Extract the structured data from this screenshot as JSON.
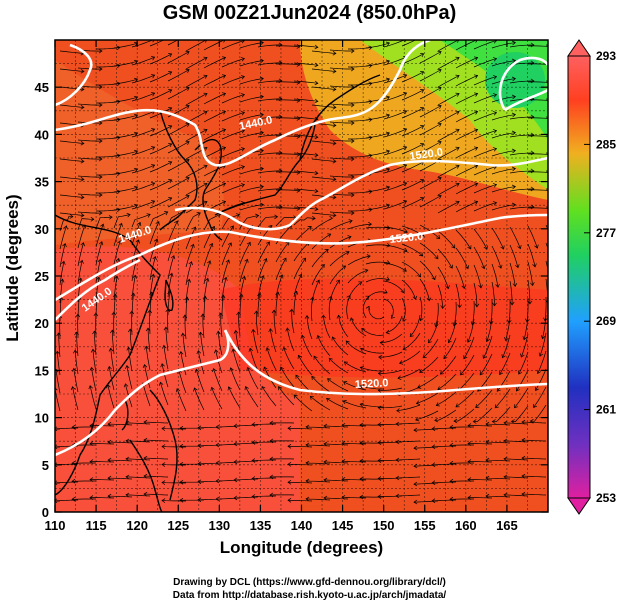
{
  "title": "GSM 00Z21Jun2024 (850.0hPa)",
  "x_axis": {
    "label": "Longitude (degrees)",
    "range": [
      110,
      170
    ],
    "ticks": [
      110,
      115,
      120,
      125,
      130,
      135,
      140,
      145,
      150,
      155,
      160,
      165
    ]
  },
  "y_axis": {
    "label": "Latitude  (degrees)",
    "range": [
      0,
      50
    ],
    "ticks": [
      0,
      5,
      10,
      15,
      20,
      25,
      30,
      35,
      40,
      45
    ]
  },
  "colorbar": {
    "ticks": [
      293,
      285,
      277,
      269,
      261,
      253
    ],
    "range": [
      253,
      293
    ],
    "colors": [
      "#e020a0",
      "#2030c0",
      "#20a0ff",
      "#20d060",
      "#60e020",
      "#f0a020",
      "#ff4020",
      "#ff6060"
    ]
  },
  "contours": [
    {
      "label": "1440.0"
    },
    {
      "label": "1440.0"
    },
    {
      "label": "1520.0"
    },
    {
      "label": "1520.0"
    },
    {
      "label": "1520.0"
    },
    {
      "label": "1440.0"
    }
  ],
  "credits": {
    "line1": "Drawing by DCL (https://www.gfd-dennou.org/library/dcl/)",
    "line2": "Data from http://database.rish.kyoto-u.ac.jp/arch/jmadata/"
  }
}
